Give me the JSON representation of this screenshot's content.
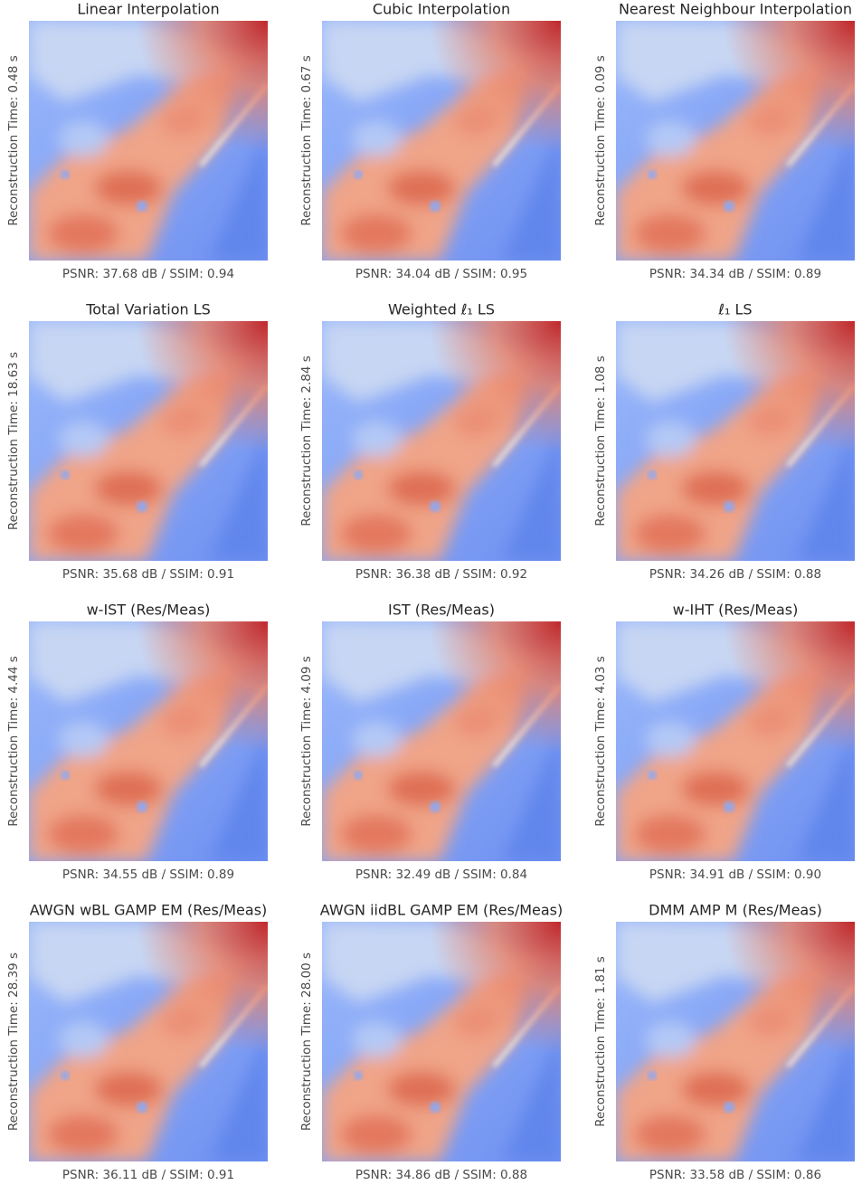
{
  "panels": [
    {
      "title": "Linear Interpolation",
      "ylabel": "Reconstruction Time: 0.48 s",
      "xlabel": "PSNR: 37.68 dB / SSIM: 0.94"
    },
    {
      "title": "Cubic Interpolation",
      "ylabel": "Reconstruction Time: 0.67 s",
      "xlabel": "PSNR: 34.04 dB / SSIM: 0.95"
    },
    {
      "title": "Nearest Neighbour Interpolation",
      "ylabel": "Reconstruction Time: 0.09 s",
      "xlabel": "PSNR: 34.34 dB / SSIM: 0.89"
    },
    {
      "title": "Total Variation LS",
      "ylabel": "Reconstruction Time: 18.63 s",
      "xlabel": "PSNR: 35.68 dB / SSIM: 0.91"
    },
    {
      "title": "Weighted ℓ₁ LS",
      "ylabel": "Reconstruction Time: 2.84 s",
      "xlabel": "PSNR: 36.38 dB / SSIM: 0.92"
    },
    {
      "title": "ℓ₁ LS",
      "ylabel": "Reconstruction Time: 1.08 s",
      "xlabel": "PSNR: 34.26 dB / SSIM: 0.88"
    },
    {
      "title": "w-IST (Res/Meas)",
      "ylabel": "Reconstruction Time: 4.44 s",
      "xlabel": "PSNR: 34.55 dB / SSIM: 0.89"
    },
    {
      "title": "IST (Res/Meas)",
      "ylabel": "Reconstruction Time: 4.09 s",
      "xlabel": "PSNR: 32.49 dB / SSIM: 0.84"
    },
    {
      "title": "w-IHT (Res/Meas)",
      "ylabel": "Reconstruction Time: 4.03 s",
      "xlabel": "PSNR: 34.91 dB / SSIM: 0.90"
    },
    {
      "title": "AWGN wBL GAMP EM (Res/Meas)",
      "ylabel": "Reconstruction Time: 28.39 s",
      "xlabel": "PSNR: 36.11 dB / SSIM: 0.91"
    },
    {
      "title": "AWGN iidBL GAMP EM (Res/Meas)",
      "ylabel": "Reconstruction Time: 28.00 s",
      "xlabel": "PSNR: 34.86 dB / SSIM: 0.88"
    },
    {
      "title": "DMM AMP M (Res/Meas)",
      "ylabel": "Reconstruction Time: 1.81 s",
      "xlabel": "PSNR: 33.58 dB / SSIM: 0.86"
    }
  ]
}
